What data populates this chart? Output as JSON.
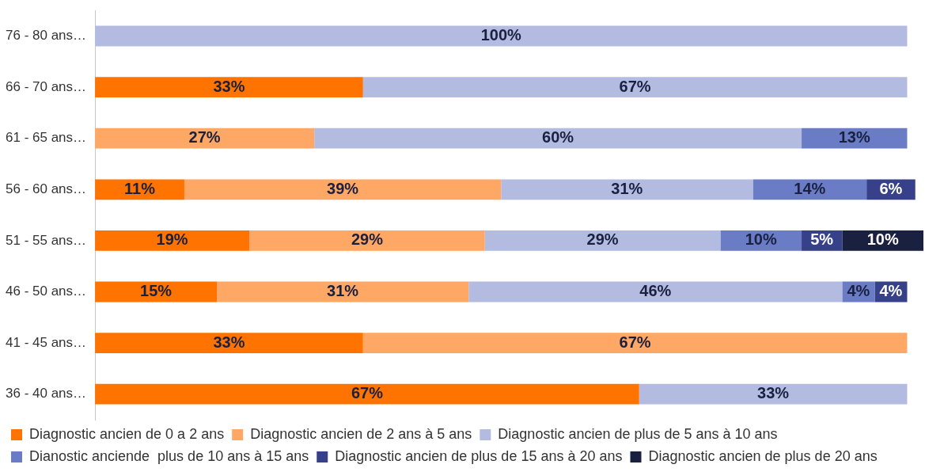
{
  "chart_data": {
    "type": "bar",
    "orientation": "horizontal",
    "stacked": true,
    "legend": "bottom",
    "categories": [
      "76 - 80 ans…",
      "66 - 70 ans…",
      "61 - 65 ans…",
      "56 - 60 ans…",
      "51 - 55 ans…",
      "46 - 50 ans…",
      "41 - 45 ans…",
      "36 - 40 ans…"
    ],
    "series": [
      {
        "name": "Diagnostic ancien de 0 a 2 ans",
        "color": "#ff7300",
        "values": [
          null,
          33,
          null,
          11,
          19,
          15,
          33,
          67
        ],
        "value_labels": [
          null,
          "33%",
          null,
          "11%",
          "19%",
          "15%",
          "33%",
          "67%"
        ]
      },
      {
        "name": "Diagnostic ancien de 2 ans à 5 ans",
        "color": "#ffa764",
        "values": [
          null,
          null,
          27,
          39,
          29,
          31,
          67,
          null
        ],
        "value_labels": [
          null,
          null,
          "27%",
          "39%",
          "29%",
          "31%",
          "67%",
          null
        ]
      },
      {
        "name": "Diagnostic ancien de plus de 5 ans à 10 ans",
        "color": "#b3bce0",
        "values": [
          100,
          67,
          60,
          31,
          29,
          46,
          null,
          33
        ],
        "value_labels": [
          "100%",
          "67%",
          "60%",
          "31%",
          "29%",
          "46%",
          null,
          "33%"
        ]
      },
      {
        "name": "Dianostic anciende  plus de 10 ans à 15 ans",
        "color": "#6a7cc6",
        "values": [
          null,
          null,
          13,
          14,
          10,
          4,
          null,
          null
        ],
        "value_labels": [
          null,
          null,
          "13%",
          "14%",
          "10%",
          "4%",
          null,
          null
        ]
      },
      {
        "name": "Diagnostic ancien de plus de 15 ans à 20 ans",
        "color": "#36418a",
        "values": [
          null,
          null,
          null,
          6,
          5,
          4,
          null,
          null
        ],
        "value_labels": [
          null,
          null,
          null,
          "6%",
          "5%",
          "4%",
          null,
          null
        ]
      },
      {
        "name": "Diagnostic ancien de plus de 20 ans",
        "color": "#1a2040",
        "values": [
          null,
          null,
          null,
          null,
          10,
          null,
          null,
          null
        ],
        "value_labels": [
          null,
          null,
          null,
          null,
          "10%",
          null,
          null,
          null
        ]
      }
    ]
  }
}
